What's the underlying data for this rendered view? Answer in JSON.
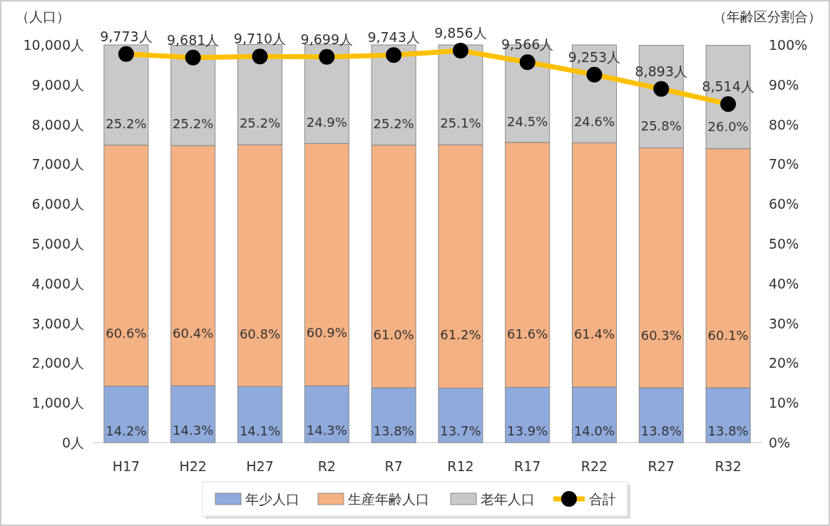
{
  "chart_data": {
    "type": "bar",
    "stacked": true,
    "ylabel": "（人口）",
    "y2label": "（年齢区分割合）",
    "categories": [
      "H17",
      "H22",
      "H27",
      "R2",
      "R7",
      "R12",
      "R17",
      "R22",
      "R27",
      "R32"
    ],
    "ylim": [
      0,
      10000
    ],
    "yticks": [
      {
        "value": 0,
        "label": "0人"
      },
      {
        "value": 1000,
        "label": "1,000人"
      },
      {
        "value": 2000,
        "label": "2,000人"
      },
      {
        "value": 3000,
        "label": "3,000人"
      },
      {
        "value": 4000,
        "label": "4,000人"
      },
      {
        "value": 5000,
        "label": "5,000人"
      },
      {
        "value": 6000,
        "label": "6,000人"
      },
      {
        "value": 7000,
        "label": "7,000人"
      },
      {
        "value": 8000,
        "label": "8,000人"
      },
      {
        "value": 9000,
        "label": "9,000人"
      },
      {
        "value": 10000,
        "label": "10,000人"
      }
    ],
    "y2lim": [
      0,
      100
    ],
    "y2ticks": [
      {
        "value": 0,
        "label": "0%"
      },
      {
        "value": 10,
        "label": "10%"
      },
      {
        "value": 20,
        "label": "20%"
      },
      {
        "value": 30,
        "label": "30%"
      },
      {
        "value": 40,
        "label": "40%"
      },
      {
        "value": 50,
        "label": "50%"
      },
      {
        "value": 60,
        "label": "60%"
      },
      {
        "value": 70,
        "label": "70%"
      },
      {
        "value": 80,
        "label": "80%"
      },
      {
        "value": 90,
        "label": "90%"
      },
      {
        "value": 100,
        "label": "100%"
      }
    ],
    "legend": "bottom",
    "series": [
      {
        "name": "年少人口",
        "axis": "y2",
        "color": "#8faadc",
        "values": [
          14.2,
          14.3,
          14.1,
          14.3,
          13.8,
          13.7,
          13.9,
          14.0,
          13.8,
          13.8
        ],
        "value_labels": [
          "14.2%",
          "14.3%",
          "14.1%",
          "14.3%",
          "13.8%",
          "13.7%",
          "13.9%",
          "14.0%",
          "13.8%",
          "13.8%"
        ]
      },
      {
        "name": "生産年齢人口",
        "axis": "y2",
        "color": "#f4b183",
        "values": [
          60.6,
          60.4,
          60.8,
          60.9,
          61.0,
          61.2,
          61.6,
          61.4,
          60.3,
          60.1
        ],
        "value_labels": [
          "60.6%",
          "60.4%",
          "60.8%",
          "60.9%",
          "61.0%",
          "61.2%",
          "61.6%",
          "61.4%",
          "60.3%",
          "60.1%"
        ]
      },
      {
        "name": "老年人口",
        "axis": "y2",
        "color": "#c9c9c9",
        "values": [
          25.2,
          25.2,
          25.2,
          24.9,
          25.2,
          25.1,
          24.5,
          24.6,
          25.8,
          26.0
        ],
        "value_labels": [
          "25.2%",
          "25.2%",
          "25.2%",
          "24.9%",
          "25.2%",
          "25.1%",
          "24.5%",
          "24.6%",
          "25.8%",
          "26.0%"
        ]
      },
      {
        "name": "合計",
        "type": "line",
        "axis": "y",
        "color": "#ffc000",
        "marker": "circle",
        "values": [
          9773,
          9681,
          9710,
          9699,
          9743,
          9856,
          9566,
          9253,
          8893,
          8514
        ],
        "value_labels": [
          "9,773人",
          "9,681人",
          "9,710人",
          "9,699人",
          "9,743人",
          "9,856人",
          "9,566人",
          "9,253人",
          "8,893人",
          "8,514人"
        ]
      }
    ]
  }
}
